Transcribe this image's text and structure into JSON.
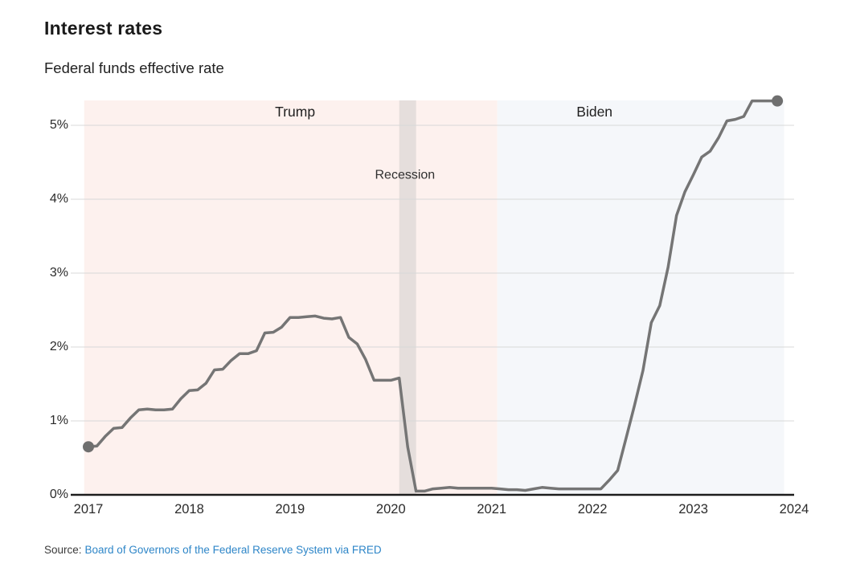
{
  "header": {
    "title": "Interest rates",
    "subtitle": "Federal funds effective rate"
  },
  "source": {
    "label": "Source:",
    "link_text": "Board of Governors of the Federal Reserve System via FRED",
    "link_color": "#2e86c8"
  },
  "colors": {
    "line": "#757575",
    "endpoint_dot": "#6f6f6f",
    "gridline": "#d8d8d8",
    "axis": "#1d1d1d",
    "trump_region": "#fdf1ee",
    "biden_region": "#f5f7fa",
    "recession_band": "#e5dedc"
  },
  "chart_data": {
    "type": "line",
    "title": "Interest rates",
    "subtitle": "Federal funds effective rate",
    "unit": "percent",
    "grid": "horizontal",
    "x_ticks": [
      "2017",
      "2018",
      "2019",
      "2020",
      "2021",
      "2022",
      "2023",
      "2024"
    ],
    "y_ticks": [
      "0%",
      "1%",
      "2%",
      "3%",
      "4%",
      "5%"
    ],
    "xlim": [
      2016.958,
      2024.0
    ],
    "ylim": [
      0,
      5.4
    ],
    "legend": "none",
    "endpoint_markers": true,
    "regions": [
      {
        "label": "Trump",
        "from": 2016.958,
        "to": 2021.055,
        "label_at": 2019.05
      },
      {
        "label": "Biden",
        "from": 2021.055,
        "to": 2023.9,
        "label_at": 2022.02
      }
    ],
    "recession_band": {
      "label": "Recession",
      "from": 2020.083,
      "to": 2020.25,
      "label_at": 2020.14,
      "label_rate": 4.33
    },
    "series": [
      {
        "name": "Federal funds effective rate",
        "start": "2017-01",
        "interval": "monthly",
        "values": [
          0.65,
          0.66,
          0.79,
          0.9,
          0.91,
          1.04,
          1.15,
          1.16,
          1.15,
          1.15,
          1.16,
          1.3,
          1.41,
          1.42,
          1.51,
          1.69,
          1.7,
          1.82,
          1.91,
          1.91,
          1.95,
          2.19,
          2.2,
          2.27,
          2.4,
          2.4,
          2.41,
          2.42,
          2.39,
          2.38,
          2.4,
          2.13,
          2.04,
          1.83,
          1.55,
          1.55,
          1.55,
          1.58,
          0.65,
          0.05,
          0.05,
          0.08,
          0.09,
          0.1,
          0.09,
          0.09,
          0.09,
          0.09,
          0.09,
          0.08,
          0.07,
          0.07,
          0.06,
          0.08,
          0.1,
          0.09,
          0.08,
          0.08,
          0.08,
          0.08,
          0.08,
          0.08,
          0.2,
          0.33,
          0.77,
          1.21,
          1.68,
          2.33,
          2.56,
          3.08,
          3.78,
          4.1,
          4.33,
          4.57,
          4.65,
          4.83,
          5.06,
          5.08,
          5.12,
          5.33,
          5.33,
          5.33,
          5.33
        ]
      }
    ]
  }
}
